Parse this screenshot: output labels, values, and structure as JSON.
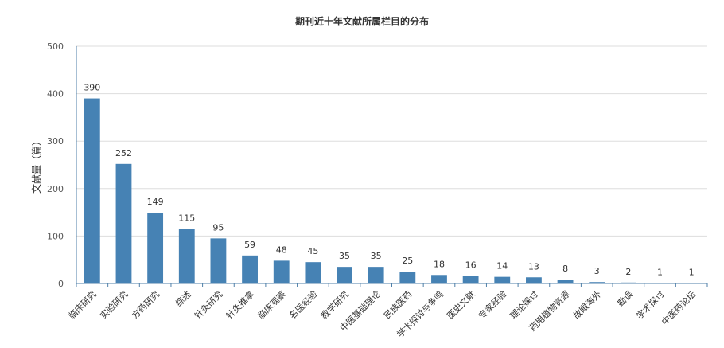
{
  "chart_data": {
    "type": "bar",
    "title": "期刊近十年文献所属栏目的分布",
    "xlabel": "",
    "ylabel": "文献量（篇）",
    "ylim": [
      0,
      500
    ],
    "yticks": [
      0,
      100,
      200,
      300,
      400,
      500
    ],
    "grid": true,
    "bar_color": "#4682b4",
    "categories": [
      "临床研究",
      "实验研究",
      "方药研究",
      "综述",
      "针灸研究",
      "针灸推拿",
      "临床观察",
      "名医经验",
      "教学研究",
      "中医基础理论",
      "民族医药",
      "学术探讨与争鸣",
      "医史文献",
      "专家经验",
      "理论探讨",
      "药用植物资源",
      "故眼海外",
      "勘误",
      "学术探讨",
      "中医药论坛"
    ],
    "values": [
      390,
      252,
      149,
      115,
      95,
      59,
      48,
      45,
      35,
      35,
      25,
      18,
      16,
      14,
      13,
      8,
      3,
      2,
      1,
      1
    ]
  }
}
